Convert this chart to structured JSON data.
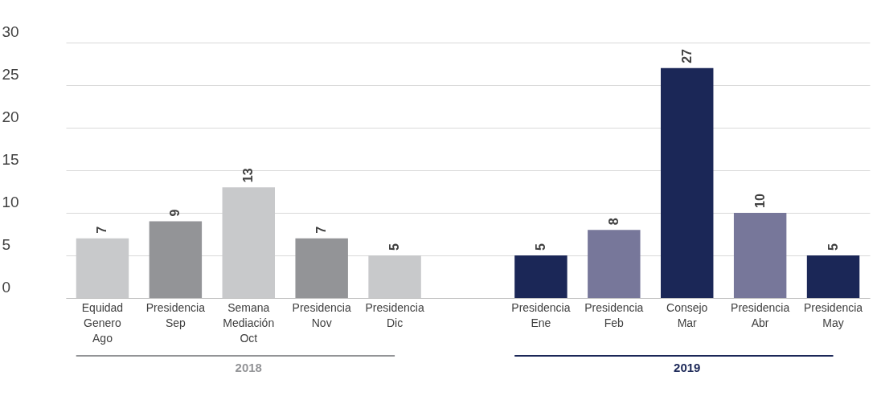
{
  "chart_data": {
    "type": "bar",
    "categories": [
      "Equidad\nGenero\nAgo",
      "Presidencia\n\nSep",
      "Semana\nMediación\nOct",
      "Presidencia\n\nNov",
      "Presidencia\n\nDic",
      null,
      "Presidencia\n\nEne",
      "Presidencia\n\nFeb",
      "Consejo\n\nMar",
      "Presidencia\n\nAbr",
      "Presidencia\n\nMay"
    ],
    "values": [
      7,
      9,
      13,
      7,
      5,
      null,
      5,
      8,
      27,
      10,
      5
    ],
    "colors": [
      "#c8c9cb",
      "#939497",
      "#c8c9cb",
      "#939497",
      "#c8c9cb",
      "#ffffff",
      "#1b2757",
      "#77779a",
      "#1b2757",
      "#77779a",
      "#1b2757"
    ],
    "ylim": [
      0,
      30
    ],
    "yticks": [
      0,
      5,
      10,
      15,
      20,
      25,
      30
    ],
    "grid": "y",
    "data_labels": true,
    "annotations": [
      "2018",
      "2019"
    ]
  }
}
